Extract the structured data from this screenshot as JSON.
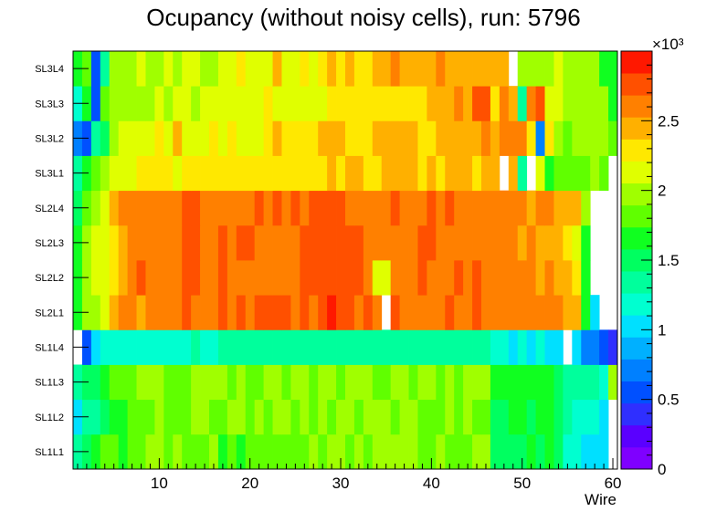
{
  "chart_data": {
    "type": "heatmap",
    "title": "Ocupancy (without noisy cells), run: 5796",
    "xlabel": "Wire",
    "ylabel": "",
    "x_range": [
      0.5,
      60.5
    ],
    "x_ticks": [
      10,
      20,
      30,
      40,
      50,
      60
    ],
    "y_categories": [
      "SL1L1",
      "SL1L2",
      "SL1L3",
      "SL1L4",
      "SL2L1",
      "SL2L2",
      "SL2L3",
      "SL2L4",
      "SL3L1",
      "SL3L2",
      "SL3L3",
      "SL3L4"
    ],
    "z_range": [
      0,
      3000
    ],
    "z_ticks": [
      0,
      500,
      1000,
      1500,
      2000,
      2500
    ],
    "z_tick_labels": [
      "0",
      "0.5",
      "1",
      "1.5",
      "2",
      "2.5"
    ],
    "z_exponent_label": "×10³",
    "palette": [
      "#7f00ff",
      "#5a00ff",
      "#2f2fff",
      "#0050ff",
      "#0080ff",
      "#00b0ff",
      "#00e0ff",
      "#00ffd0",
      "#00ff9c",
      "#00ff60",
      "#10ff20",
      "#60ff00",
      "#a0ff00",
      "#e0ff00",
      "#ffe800",
      "#ffb000",
      "#ff8000",
      "#ff5000",
      "#ff1800"
    ],
    "z_values": [
      [
        1400,
        1550,
        1700,
        1750,
        1750,
        1650,
        1800,
        1800,
        1900,
        1950,
        1800,
        1950,
        1750,
        1750,
        1800,
        1900,
        1700,
        1750,
        1700,
        1800,
        1800,
        1850,
        1850,
        1850,
        1750,
        1800,
        1900,
        1800,
        2000,
        1950,
        1800,
        1900,
        1750,
        1900,
        2050,
        1900,
        2000,
        1900,
        1750,
        1800,
        1900,
        1800,
        1850,
        1750,
        1950,
        1900,
        1500,
        1500,
        1500,
        1500,
        1600,
        1500,
        1600,
        1500,
        1200,
        1200,
        1100,
        1100,
        1000,
        null
      ],
      [
        1000,
        1300,
        1400,
        1500,
        1700,
        1700,
        1800,
        1800,
        1850,
        1900,
        1850,
        1850,
        1800,
        1900,
        1950,
        1850,
        1800,
        1900,
        1900,
        1850,
        1900,
        1800,
        1900,
        1900,
        1850,
        1900,
        1850,
        1900,
        1850,
        1900,
        1950,
        1850,
        1950,
        1900,
        1950,
        1850,
        1950,
        1900,
        1850,
        1800,
        1850,
        1900,
        1850,
        1950,
        1850,
        1800,
        1550,
        1550,
        1600,
        1650,
        1500,
        1700,
        1600,
        1550,
        1300,
        1250,
        1150,
        1200,
        1000,
        null
      ],
      [
        1350,
        1450,
        1500,
        1650,
        1800,
        1800,
        1850,
        1900,
        1900,
        1900,
        1850,
        1850,
        1850,
        1950,
        1900,
        1950,
        1950,
        1800,
        1900,
        1850,
        1850,
        1900,
        1900,
        1850,
        1900,
        1900,
        1850,
        1900,
        1900,
        1850,
        1900,
        1900,
        1950,
        1850,
        1850,
        1900,
        1950,
        1850,
        1900,
        1900,
        1850,
        1900,
        1850,
        1900,
        1900,
        1900,
        1650,
        1600,
        1650,
        1650,
        1650,
        1650,
        1650,
        1550,
        1400,
        1300,
        1300,
        1300,
        1150,
        2050
      ],
      [
        null,
        600,
        1050,
        1150,
        1150,
        1150,
        1150,
        1150,
        1200,
        1250,
        1200,
        1250,
        1200,
        1300,
        1250,
        1250,
        1300,
        1300,
        1300,
        1300,
        1300,
        1300,
        1300,
        1300,
        1300,
        1300,
        1300,
        1300,
        1300,
        1300,
        1300,
        1400,
        1400,
        1300,
        1400,
        1400,
        1300,
        1300,
        1300,
        1300,
        1300,
        1400,
        1300,
        1300,
        1300,
        1300,
        1150,
        1150,
        1100,
        1150,
        1100,
        1150,
        1100,
        1100,
        null,
        1100,
        700,
        700,
        600,
        400
      ],
      [
        1700,
        1900,
        2050,
        2100,
        2500,
        2600,
        2600,
        2500,
        2650,
        2600,
        2650,
        2600,
        2700,
        2650,
        2600,
        2600,
        2700,
        2600,
        2700,
        2650,
        2800,
        2800,
        2800,
        2700,
        2650,
        2800,
        2650,
        2800,
        2900,
        2700,
        2800,
        2650,
        2750,
        2600,
        null,
        2800,
        2550,
        2650,
        2650,
        2600,
        2650,
        2700,
        2600,
        2650,
        2700,
        2600,
        2650,
        2550,
        2600,
        2600,
        2550,
        2600,
        2550,
        2600,
        2500,
        2400,
        1600,
        1000,
        null,
        null
      ],
      [
        1650,
        1900,
        2100,
        2100,
        2300,
        2500,
        2600,
        2700,
        2600,
        2550,
        2650,
        2600,
        2800,
        2800,
        2600,
        2600,
        2700,
        2600,
        2650,
        2650,
        2600,
        2600,
        2550,
        2550,
        2600,
        2800,
        2800,
        2750,
        2700,
        2800,
        2700,
        2700,
        2650,
        2200,
        2200,
        2600,
        2600,
        2600,
        2700,
        2650,
        2600,
        2600,
        2700,
        2600,
        2700,
        2650,
        2600,
        2600,
        2550,
        2550,
        2600,
        2500,
        2550,
        2450,
        2400,
        2300,
        1650,
        null,
        null,
        null
      ],
      [
        1700,
        1900,
        2100,
        2200,
        2350,
        2500,
        2600,
        2600,
        2650,
        2600,
        2650,
        2600,
        2750,
        2750,
        2650,
        2650,
        2700,
        2600,
        2700,
        2700,
        2600,
        2600,
        2650,
        2550,
        2550,
        2800,
        2750,
        2800,
        2750,
        2750,
        2800,
        2700,
        2650,
        2600,
        2600,
        2650,
        2600,
        2600,
        2700,
        2700,
        2600,
        2650,
        2600,
        2650,
        2600,
        2600,
        2600,
        2600,
        2600,
        2500,
        2550,
        2500,
        2500,
        2450,
        2300,
        2150,
        1700,
        null,
        null,
        null
      ],
      [
        1500,
        1800,
        2050,
        2200,
        2400,
        2600,
        2600,
        2600,
        2600,
        2650,
        2600,
        2600,
        2700,
        2700,
        2600,
        2650,
        2600,
        2600,
        2650,
        2600,
        2700,
        2600,
        2700,
        2650,
        2700,
        2600,
        2700,
        2700,
        2800,
        2800,
        2650,
        2600,
        2650,
        2550,
        2650,
        2700,
        2600,
        2600,
        2650,
        2700,
        2600,
        2700,
        2600,
        2650,
        2600,
        2600,
        2650,
        2550,
        2650,
        2600,
        2500,
        2600,
        2600,
        2500,
        2450,
        2400,
        1900,
        null,
        null,
        null
      ],
      [
        1400,
        1700,
        1800,
        1900,
        2100,
        2150,
        2200,
        2250,
        2250,
        2250,
        2300,
        2200,
        2300,
        2350,
        2300,
        2350,
        2250,
        2300,
        2300,
        2300,
        2300,
        2350,
        2350,
        2250,
        2300,
        2300,
        2300,
        2350,
        2400,
        2300,
        2400,
        2400,
        2350,
        2350,
        2400,
        2400,
        2400,
        2400,
        2350,
        2400,
        2350,
        2400,
        2400,
        2400,
        2350,
        2450,
        2500,
        null,
        2400,
        1300,
        null,
        2200,
        1700,
        1800,
        1800,
        1750,
        1850,
        2000,
        1850,
        null
      ],
      [
        650,
        500,
        1300,
        1450,
        1950,
        2100,
        2150,
        2200,
        2150,
        2300,
        2200,
        2450,
        2200,
        2200,
        2150,
        2250,
        2200,
        2300,
        2200,
        2200,
        2200,
        2350,
        2400,
        2250,
        2300,
        2300,
        2250,
        2400,
        2400,
        2400,
        2300,
        2350,
        2350,
        2400,
        2400,
        2500,
        2400,
        2400,
        2300,
        2350,
        2400,
        2400,
        2450,
        2400,
        2450,
        2550,
        2500,
        2550,
        2550,
        2600,
        2250,
        700,
        2300,
        2050,
        1800,
        2050,
        2000,
        1950,
        1900,
        1800
      ],
      [
        1200,
        1600,
        600,
        1800,
        2000,
        2050,
        2000,
        2050,
        2050,
        2150,
        2000,
        2150,
        2100,
        2050,
        2100,
        2100,
        2100,
        2150,
        2200,
        2150,
        2150,
        2250,
        2150,
        2100,
        2150,
        2200,
        2150,
        2200,
        2250,
        2300,
        2250,
        2350,
        2350,
        2350,
        2350,
        2250,
        2350,
        2300,
        2350,
        2400,
        2450,
        2450,
        2550,
        2500,
        2700,
        2800,
        2300,
        2600,
        2450,
        1400,
        2550,
        2700,
        2200,
        2100,
        1950,
        1900,
        2050,
        2000,
        1900,
        1600
      ],
      [
        1600,
        1850,
        600,
        1400,
        2000,
        2050,
        2000,
        2100,
        2000,
        2050,
        2100,
        2000,
        2100,
        2100,
        2000,
        2050,
        2100,
        2200,
        2300,
        2150,
        2100,
        2200,
        2400,
        2150,
        2150,
        2300,
        2150,
        2300,
        2400,
        2300,
        2400,
        2250,
        2250,
        2500,
        2500,
        2550,
        2500,
        2500,
        2450,
        2450,
        2550,
        2500,
        2500,
        2450,
        2500,
        2400,
        2450,
        2500,
        null,
        2000,
        1900,
        1900,
        1900,
        2100,
        2000,
        2050,
        2000,
        2050,
        1700,
        1650
      ]
    ]
  }
}
